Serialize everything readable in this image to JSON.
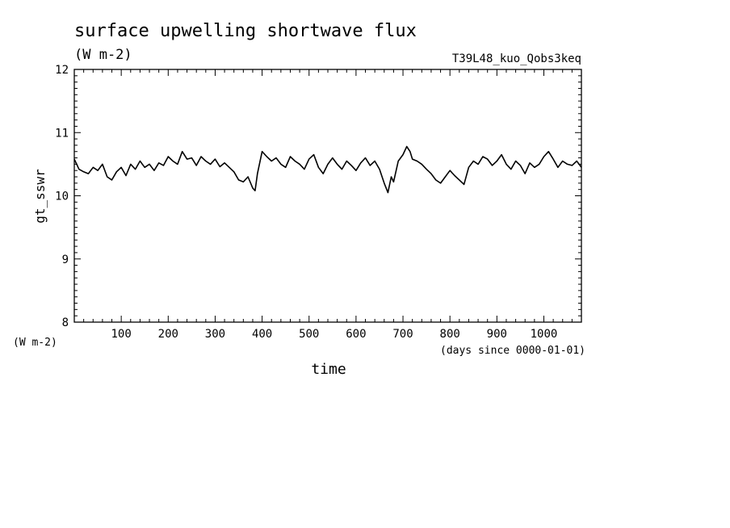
{
  "chart_data": {
    "type": "line",
    "title": "surface upwelling shortwave flux",
    "title_units": "(W m-2)",
    "experiment": "T39L48_kuo_Qobs3keq",
    "xlabel": "time",
    "x_units": "(days since 0000-01-01)",
    "ylabel": "gt_sswr",
    "y_units": "(W m-2)",
    "xlim": [
      0,
      1080
    ],
    "ylim": [
      8,
      12
    ],
    "x_ticks": [
      100,
      200,
      300,
      400,
      500,
      600,
      700,
      800,
      900,
      1000
    ],
    "y_ticks": [
      8,
      9,
      10,
      11,
      12
    ],
    "grid": false,
    "series": [
      {
        "x": [
          0,
          10,
          20,
          30,
          40,
          50,
          60,
          70,
          80,
          90,
          100,
          110,
          120,
          130,
          140,
          150,
          160,
          170,
          180,
          190,
          200,
          210,
          220,
          230,
          240,
          250,
          260,
          270,
          280,
          290,
          300,
          310,
          320,
          330,
          340,
          350,
          360,
          370,
          380,
          385,
          390,
          400,
          410,
          420,
          430,
          440,
          450,
          460,
          470,
          480,
          490,
          500,
          510,
          520,
          530,
          540,
          550,
          560,
          570,
          580,
          590,
          600,
          610,
          620,
          630,
          640,
          650,
          660,
          668,
          675,
          680,
          690,
          700,
          708,
          715,
          720,
          730,
          740,
          750,
          760,
          770,
          780,
          790,
          800,
          810,
          820,
          830,
          840,
          850,
          860,
          870,
          880,
          890,
          900,
          910,
          920,
          930,
          940,
          950,
          960,
          970,
          980,
          990,
          1000,
          1010,
          1020,
          1030,
          1040,
          1050,
          1060,
          1070,
          1080
        ],
        "y": [
          10.58,
          10.42,
          10.38,
          10.35,
          10.45,
          10.4,
          10.5,
          10.3,
          10.25,
          10.38,
          10.45,
          10.32,
          10.5,
          10.42,
          10.55,
          10.45,
          10.5,
          10.4,
          10.52,
          10.48,
          10.62,
          10.55,
          10.5,
          10.7,
          10.58,
          10.6,
          10.48,
          10.62,
          10.55,
          10.5,
          10.58,
          10.46,
          10.52,
          10.45,
          10.38,
          10.25,
          10.22,
          10.3,
          10.12,
          10.08,
          10.35,
          10.7,
          10.62,
          10.55,
          10.6,
          10.5,
          10.45,
          10.62,
          10.55,
          10.5,
          10.42,
          10.58,
          10.65,
          10.45,
          10.35,
          10.5,
          10.6,
          10.5,
          10.42,
          10.55,
          10.48,
          10.4,
          10.52,
          10.6,
          10.48,
          10.55,
          10.42,
          10.2,
          10.05,
          10.3,
          10.22,
          10.55,
          10.65,
          10.78,
          10.7,
          10.58,
          10.55,
          10.5,
          10.42,
          10.35,
          10.25,
          10.2,
          10.3,
          10.4,
          10.32,
          10.25,
          10.18,
          10.45,
          10.55,
          10.5,
          10.62,
          10.58,
          10.48,
          10.55,
          10.65,
          10.5,
          10.42,
          10.55,
          10.48,
          10.35,
          10.52,
          10.45,
          10.5,
          10.62,
          10.7,
          10.58,
          10.45,
          10.55,
          10.5,
          10.48,
          10.55,
          10.45
        ]
      }
    ]
  }
}
